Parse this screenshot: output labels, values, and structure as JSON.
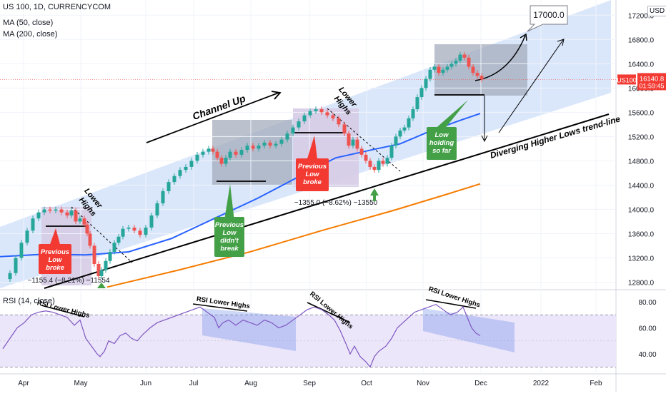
{
  "header": {
    "symbol_line": "US 100, 1D, CURRENCYCOM",
    "ma50_label": "MA (50, close)",
    "ma200_label": "MA (200, close)",
    "rsi_label": "RSI (14, close)",
    "currency": "USD"
  },
  "price_badge": {
    "symbol": "US100",
    "price": "16140.8",
    "countdown": "01:59:45"
  },
  "target_label": "17000.0",
  "chart_data": {
    "type": "line",
    "x_ticks": [
      "Apr",
      "May",
      "Jun",
      "Jul",
      "Aug",
      "Sep",
      "Oct",
      "Nov",
      "Dec",
      "2022",
      "Feb"
    ],
    "y_ticks": [
      "17200.0",
      "16800.0",
      "16400.0",
      "16000.0",
      "15600.0",
      "15200.0",
      "14800.0",
      "14400.0",
      "14000.0",
      "13600.0",
      "13200.0",
      "12800.0"
    ],
    "ylim": [
      12700,
      17450
    ],
    "rsi_ticks": [
      "80.00",
      "60.00",
      "40.00"
    ],
    "rsi_ylim": [
      28,
      86
    ],
    "rsi_bands": [
      70,
      30
    ],
    "price_path": [
      [
        4,
        12850
      ],
      [
        14,
        12950
      ],
      [
        22,
        13200
      ],
      [
        30,
        13450
      ],
      [
        38,
        13650
      ],
      [
        46,
        13850
      ],
      [
        54,
        13950
      ],
      [
        62,
        14000
      ],
      [
        70,
        13980
      ],
      [
        78,
        14000
      ],
      [
        86,
        13950
      ],
      [
        94,
        13900
      ],
      [
        100,
        13980
      ],
      [
        106,
        13800
      ],
      [
        112,
        13850
      ],
      [
        118,
        13750
      ],
      [
        122,
        13600
      ],
      [
        126,
        13400
      ],
      [
        132,
        13100
      ],
      [
        138,
        12900
      ],
      [
        142,
        13000
      ],
      [
        148,
        13150
      ],
      [
        154,
        13300
      ],
      [
        160,
        13450
      ],
      [
        166,
        13550
      ],
      [
        172,
        13680
      ],
      [
        180,
        13700
      ],
      [
        188,
        13650
      ],
      [
        196,
        13580
      ],
      [
        204,
        13700
      ],
      [
        212,
        13900
      ],
      [
        220,
        14100
      ],
      [
        228,
        14300
      ],
      [
        236,
        14450
      ],
      [
        244,
        14550
      ],
      [
        252,
        14650
      ],
      [
        260,
        14700
      ],
      [
        268,
        14800
      ],
      [
        276,
        14900
      ],
      [
        284,
        14950
      ],
      [
        292,
        15000
      ],
      [
        298,
        14950
      ],
      [
        304,
        14850
      ],
      [
        310,
        14750
      ],
      [
        316,
        14850
      ],
      [
        322,
        14950
      ],
      [
        330,
        14900
      ],
      [
        338,
        14980
      ],
      [
        346,
        15050
      ],
      [
        354,
        15000
      ],
      [
        362,
        15050
      ],
      [
        370,
        15100
      ],
      [
        378,
        15050
      ],
      [
        386,
        15080
      ],
      [
        394,
        15150
      ],
      [
        402,
        15250
      ],
      [
        410,
        15350
      ],
      [
        418,
        15450
      ],
      [
        426,
        15550
      ],
      [
        434,
        15620
      ],
      [
        442,
        15650
      ],
      [
        450,
        15600
      ],
      [
        458,
        15550
      ],
      [
        466,
        15500
      ],
      [
        474,
        15400
      ],
      [
        482,
        15250
      ],
      [
        488,
        15050
      ],
      [
        494,
        15150
      ],
      [
        500,
        15000
      ],
      [
        506,
        14900
      ],
      [
        512,
        14800
      ],
      [
        518,
        14700
      ],
      [
        524,
        14650
      ],
      [
        530,
        14800
      ],
      [
        536,
        14750
      ],
      [
        542,
        14850
      ],
      [
        548,
        15050
      ],
      [
        554,
        15200
      ],
      [
        560,
        15300
      ],
      [
        566,
        15350
      ],
      [
        572,
        15500
      ],
      [
        578,
        15650
      ],
      [
        584,
        15850
      ],
      [
        590,
        16000
      ],
      [
        596,
        16150
      ],
      [
        602,
        16300
      ],
      [
        608,
        16350
      ],
      [
        614,
        16250
      ],
      [
        620,
        16300
      ],
      [
        626,
        16350
      ],
      [
        632,
        16400
      ],
      [
        638,
        16450
      ],
      [
        644,
        16550
      ],
      [
        650,
        16500
      ],
      [
        656,
        16350
      ],
      [
        662,
        16250
      ],
      [
        668,
        16200
      ],
      [
        674,
        16140
      ]
    ],
    "series": [
      {
        "name": "MA (50, close)",
        "color": "#2962ff",
        "points": [
          [
            0,
            13220
          ],
          [
            60,
            13260
          ],
          [
            120,
            13250
          ],
          [
            180,
            13300
          ],
          [
            240,
            13520
          ],
          [
            300,
            13850
          ],
          [
            360,
            14180
          ],
          [
            420,
            14550
          ],
          [
            470,
            14850
          ],
          [
            520,
            14980
          ],
          [
            560,
            15080
          ],
          [
            600,
            15280
          ],
          [
            640,
            15450
          ],
          [
            672,
            15580
          ]
        ]
      },
      {
        "name": "MA (200, close)",
        "color": "#f57c00",
        "points": [
          [
            150,
            12720
          ],
          [
            250,
            13000
          ],
          [
            350,
            13300
          ],
          [
            450,
            13650
          ],
          [
            550,
            13980
          ],
          [
            620,
            14230
          ],
          [
            672,
            14420
          ]
        ]
      }
    ],
    "rsi_path": [
      [
        4,
        44
      ],
      [
        14,
        52
      ],
      [
        24,
        60
      ],
      [
        34,
        64
      ],
      [
        44,
        70
      ],
      [
        54,
        72
      ],
      [
        64,
        73
      ],
      [
        74,
        72
      ],
      [
        84,
        70
      ],
      [
        94,
        68
      ],
      [
        104,
        62
      ],
      [
        112,
        66
      ],
      [
        120,
        52
      ],
      [
        128,
        46
      ],
      [
        136,
        40
      ],
      [
        140,
        38
      ],
      [
        146,
        42
      ],
      [
        152,
        50
      ],
      [
        160,
        48
      ],
      [
        168,
        54
      ],
      [
        176,
        56
      ],
      [
        184,
        52
      ],
      [
        192,
        50
      ],
      [
        200,
        55
      ],
      [
        210,
        60
      ],
      [
        220,
        64
      ],
      [
        230,
        66
      ],
      [
        240,
        68
      ],
      [
        250,
        70
      ],
      [
        260,
        72
      ],
      [
        270,
        74
      ],
      [
        280,
        76
      ],
      [
        290,
        72
      ],
      [
        300,
        68
      ],
      [
        306,
        60
      ],
      [
        312,
        64
      ],
      [
        320,
        66
      ],
      [
        330,
        62
      ],
      [
        340,
        66
      ],
      [
        350,
        64
      ],
      [
        360,
        62
      ],
      [
        370,
        66
      ],
      [
        380,
        64
      ],
      [
        390,
        60
      ],
      [
        400,
        62
      ],
      [
        410,
        66
      ],
      [
        420,
        70
      ],
      [
        430,
        74
      ],
      [
        440,
        76
      ],
      [
        450,
        74
      ],
      [
        460,
        70
      ],
      [
        468,
        66
      ],
      [
        476,
        58
      ],
      [
        484,
        48
      ],
      [
        490,
        40
      ],
      [
        496,
        46
      ],
      [
        504,
        38
      ],
      [
        512,
        34
      ],
      [
        518,
        30
      ],
      [
        524,
        38
      ],
      [
        530,
        42
      ],
      [
        540,
        46
      ],
      [
        548,
        52
      ],
      [
        556,
        60
      ],
      [
        564,
        64
      ],
      [
        572,
        68
      ],
      [
        580,
        72
      ],
      [
        590,
        74
      ],
      [
        600,
        76
      ],
      [
        610,
        78
      ],
      [
        620,
        74
      ],
      [
        630,
        70
      ],
      [
        640,
        72
      ],
      [
        648,
        76
      ],
      [
        654,
        68
      ],
      [
        660,
        60
      ],
      [
        666,
        56
      ],
      [
        672,
        54
      ]
    ]
  },
  "annotations": {
    "channel_up": "Channel Up",
    "lower_highs_1": "Lower Highs",
    "lower_highs_2": "Lower Highs",
    "diverging": "Diverging Higher Lows trend-line",
    "measure_1": "−1155.4 (−8.21%) −11554",
    "measure_2": "−1355.0 (−8.62%) −13550",
    "rsi_lower_highs": "RSI Lower Highs",
    "callout_prev_broke_1": [
      "Previous",
      "Low",
      "broke"
    ],
    "callout_prev_broke_2": [
      "Previous",
      "Low",
      "broke"
    ],
    "callout_prev_didnt": [
      "Previous",
      "Low",
      "didn't",
      "break"
    ],
    "callout_low_holding": [
      "Low",
      "holding",
      "so far"
    ]
  },
  "colors": {
    "channel": "#bbd3f8",
    "box_dark": "#9fa8b8",
    "box_light": "#d6cbe6",
    "candle_up": "#26a69a",
    "candle_down": "#ef5350",
    "red_callout": "#f23a33",
    "green_callout": "#43a047",
    "rsi_band": "#ece6fa",
    "rsi_line": "#7e57c2"
  }
}
